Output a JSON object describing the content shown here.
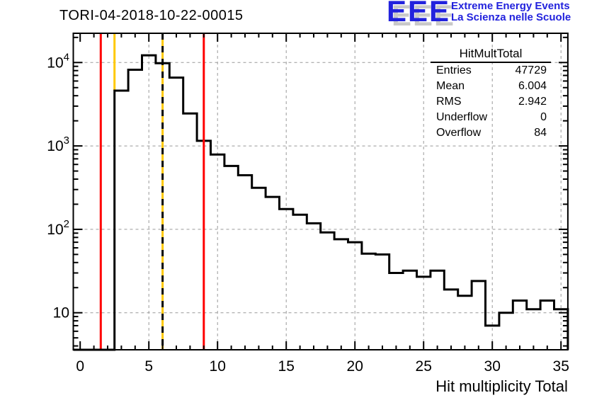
{
  "title": "TORI-04-2018-10-22-00015",
  "logo": {
    "acronym": "EEE",
    "line1": "Extreme Energy Events",
    "line2": "La Scienza nelle Scuole",
    "color": "#2222dd",
    "shadow_color": "#c9c9c9"
  },
  "stats": {
    "title": "HitMultTotal",
    "rows": [
      {
        "label": "Entries",
        "value": "47729"
      },
      {
        "label": "Mean",
        "value": "6.004"
      },
      {
        "label": "RMS",
        "value": "2.942"
      },
      {
        "label": "Underflow",
        "value": "0"
      },
      {
        "label": "Overflow",
        "value": "84"
      }
    ]
  },
  "chart_data": {
    "type": "bar",
    "subtype": "step-histogram",
    "title": "TORI-04-2018-10-22-00015",
    "xlabel": "Hit multiplicity Total",
    "ylabel": "",
    "x_range": [
      -0.5,
      35.5
    ],
    "y_scale": "log",
    "y_range": [
      3.6,
      22400
    ],
    "grid": true,
    "bin_width": 1,
    "bin_centers": [
      0,
      1,
      2,
      3,
      4,
      5,
      6,
      7,
      8,
      9,
      10,
      11,
      12,
      13,
      14,
      15,
      16,
      17,
      18,
      19,
      20,
      21,
      22,
      23,
      24,
      25,
      26,
      27,
      28,
      29,
      30,
      31,
      32,
      33,
      34,
      35
    ],
    "values": [
      0,
      0,
      0,
      4600,
      8200,
      12200,
      9800,
      6600,
      2450,
      1150,
      790,
      575,
      445,
      315,
      245,
      175,
      150,
      118,
      92,
      76,
      70,
      51,
      50,
      30,
      32,
      27,
      32,
      19,
      16,
      24,
      7,
      10,
      14,
      11,
      14,
      11
    ],
    "x_major_ticks": [
      0,
      5,
      10,
      15,
      20,
      25,
      30,
      35
    ],
    "x_tick_labels": [
      "0",
      "5",
      "10",
      "15",
      "20",
      "25",
      "30",
      "35"
    ],
    "y_ticks": [
      {
        "value": 10,
        "base": "10",
        "exp": ""
      },
      {
        "value": 100,
        "base": "10",
        "exp": "2"
      },
      {
        "value": 1000,
        "base": "10",
        "exp": "3"
      },
      {
        "value": 10000,
        "base": "10",
        "exp": "4"
      }
    ],
    "marker_lines": [
      {
        "name": "red-cut-low",
        "x": 1.5,
        "color": "#ff0000",
        "style": "solid"
      },
      {
        "name": "yellow-threshold",
        "x": 2.5,
        "color": "#ffc800",
        "style": "solid",
        "extent": "top-to-histogram"
      },
      {
        "name": "mean-line",
        "x": 6.0,
        "color": "#ffc800",
        "style": "dashed-gold-black"
      },
      {
        "name": "red-cut-high",
        "x": 9.0,
        "color": "#ff0000",
        "style": "solid"
      }
    ],
    "histogram_color": "#000000",
    "grid_color": "#999999",
    "legend_position": "none"
  }
}
